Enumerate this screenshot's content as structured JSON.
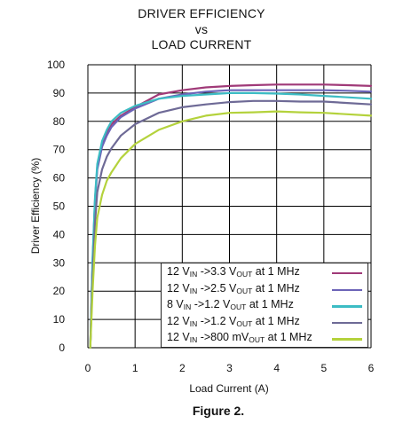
{
  "title_lines": [
    "DRIVER EFFICIENCY",
    "vs",
    "LOAD CURRENT"
  ],
  "caption": "Figure 2.",
  "chart_data": {
    "type": "line",
    "title": "DRIVER EFFICIENCY vs LOAD CURRENT",
    "xlabel": "Load Current (A)",
    "ylabel": "Driver Efficiency (%)",
    "xlim": [
      0,
      6
    ],
    "ylim": [
      0,
      100
    ],
    "x_ticks": [
      "0",
      "1",
      "2",
      "3",
      "4",
      "5",
      "6"
    ],
    "y_ticks": [
      "0",
      "10",
      "20",
      "30",
      "40",
      "50",
      "60",
      "70",
      "80",
      "90",
      "100"
    ],
    "grid": true,
    "legend_position": "bottom-right",
    "series": [
      {
        "name": "12 VIN ->3.3 VOUT at 1 MHz",
        "vin": "12 V",
        "vin_sub": "IN",
        "arrow": " ->",
        "vout": "3.3 V",
        "vout_sub": "OUT",
        "tail": " at 1 MHz",
        "color": "#a03a78",
        "x": [
          0.05,
          0.1,
          0.15,
          0.2,
          0.3,
          0.4,
          0.5,
          0.7,
          1.0,
          1.5,
          2.0,
          2.5,
          3.0,
          3.5,
          4.0,
          4.5,
          5.0,
          5.5,
          6.0
        ],
        "y": [
          0,
          30,
          52,
          64,
          72,
          76,
          79,
          82,
          85,
          89.5,
          91,
          92,
          92.5,
          92.8,
          93,
          93,
          93,
          92.8,
          92.5
        ]
      },
      {
        "name": "12 VIN ->2.5 VOUT at 1 MHz",
        "vin": "12 V",
        "vin_sub": "IN",
        "arrow": " ->",
        "vout": "2.5 V",
        "vout_sub": "OUT",
        "tail": " at 1 MHz",
        "color": "#6c64b8",
        "x": [
          0.05,
          0.1,
          0.15,
          0.2,
          0.3,
          0.4,
          0.5,
          0.7,
          1.0,
          1.5,
          2.0,
          2.5,
          3.0,
          3.5,
          4.0,
          4.5,
          5.0,
          5.5,
          6.0
        ],
        "y": [
          0,
          30,
          51,
          63,
          71,
          75,
          78,
          81.5,
          84.5,
          88,
          89.5,
          90.5,
          91,
          91,
          91,
          91,
          91,
          90.8,
          90.5
        ]
      },
      {
        "name": "8 VIN ->1.2 VOUT at 1 MHz",
        "vin": "8 V",
        "vin_sub": "IN",
        "arrow": " ->",
        "vout": "1.2 V",
        "vout_sub": "OUT",
        "tail": " at 1 MHz",
        "color": "#3cbcc4",
        "x": [
          0.05,
          0.1,
          0.15,
          0.2,
          0.3,
          0.4,
          0.5,
          0.7,
          1.0,
          1.5,
          2.0,
          2.5,
          3.0,
          3.5,
          4.0,
          4.5,
          5.0,
          5.5,
          6.0
        ],
        "y": [
          0,
          32,
          53,
          65,
          73,
          77,
          80,
          83,
          85.5,
          88,
          89,
          89.5,
          90,
          90,
          89.8,
          89.5,
          89,
          88.5,
          88
        ]
      },
      {
        "name": "12 VIN ->1.2 VOUT at 1 MHz",
        "vin": "12 V",
        "vin_sub": "IN",
        "arrow": " ->",
        "vout": "1.2 V",
        "vout_sub": "OUT",
        "tail": " at 1 MHz",
        "color": "#6e6a96",
        "x": [
          0.05,
          0.1,
          0.15,
          0.2,
          0.3,
          0.4,
          0.5,
          0.7,
          1.0,
          1.5,
          2.0,
          2.5,
          3.0,
          3.5,
          4.0,
          4.5,
          5.0,
          5.5,
          6.0
        ],
        "y": [
          0,
          25,
          44,
          55,
          63,
          67.5,
          70.5,
          75,
          79,
          83,
          85,
          86,
          86.8,
          87.2,
          87.2,
          87,
          87,
          86.5,
          86
        ]
      },
      {
        "name": "12 VIN ->800 mVOUT at 1 MHz",
        "vin": "12 V",
        "vin_sub": "IN",
        "arrow": " ->",
        "vout": "800 mV",
        "vout_sub": "OUT",
        "tail": " at 1 MHz",
        "color": "#b4d23c",
        "x": [
          0.05,
          0.1,
          0.15,
          0.2,
          0.3,
          0.4,
          0.5,
          0.7,
          1.0,
          1.5,
          2.0,
          2.5,
          3.0,
          3.5,
          4.0,
          4.5,
          5.0,
          5.5,
          6.0
        ],
        "y": [
          0,
          20,
          36,
          46,
          54,
          59,
          62,
          67,
          72,
          77,
          80,
          82,
          83,
          83.2,
          83.5,
          83.2,
          83,
          82.5,
          82
        ]
      }
    ]
  }
}
